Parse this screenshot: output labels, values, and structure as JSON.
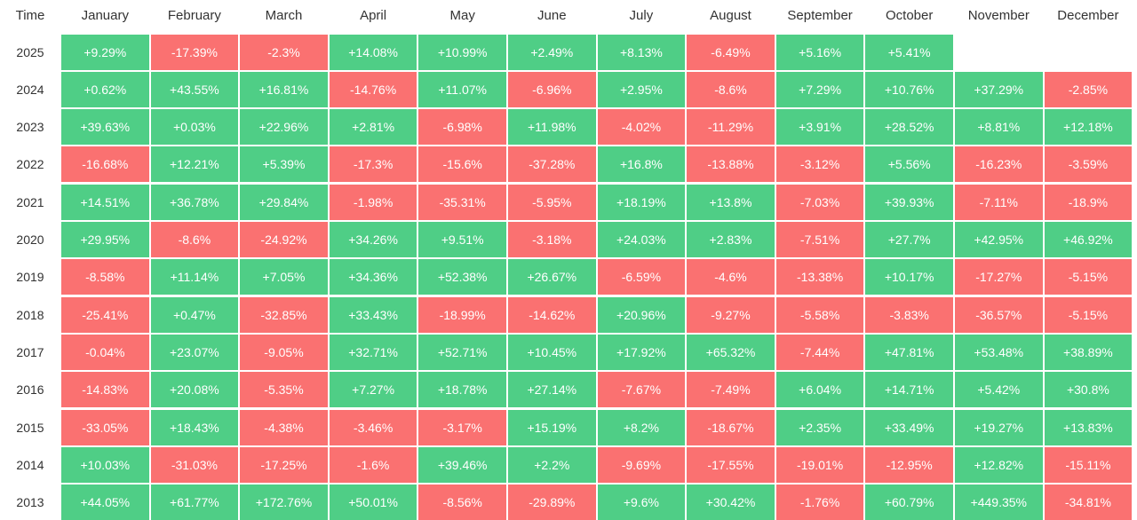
{
  "colors": {
    "positive": "#4fce86",
    "negative": "#fa7171",
    "text_on_cell": "#ffffff",
    "header_text": "#333333"
  },
  "chart_data": {
    "type": "heatmap",
    "title": "",
    "corner_label": "Time",
    "months": [
      "January",
      "February",
      "March",
      "April",
      "May",
      "June",
      "July",
      "August",
      "September",
      "October",
      "November",
      "December"
    ],
    "rows": [
      {
        "year": "2025",
        "values": [
          "+9.29%",
          "-17.39%",
          "-2.3%",
          "+14.08%",
          "+10.99%",
          "+2.49%",
          "+8.13%",
          "-6.49%",
          "+5.16%",
          "+5.41%",
          null,
          null
        ]
      },
      {
        "year": "2024",
        "values": [
          "+0.62%",
          "+43.55%",
          "+16.81%",
          "-14.76%",
          "+11.07%",
          "-6.96%",
          "+2.95%",
          "-8.6%",
          "+7.29%",
          "+10.76%",
          "+37.29%",
          "-2.85%"
        ]
      },
      {
        "year": "2023",
        "values": [
          "+39.63%",
          "+0.03%",
          "+22.96%",
          "+2.81%",
          "-6.98%",
          "+11.98%",
          "-4.02%",
          "-11.29%",
          "+3.91%",
          "+28.52%",
          "+8.81%",
          "+12.18%"
        ]
      },
      {
        "year": "2022",
        "values": [
          "-16.68%",
          "+12.21%",
          "+5.39%",
          "-17.3%",
          "-15.6%",
          "-37.28%",
          "+16.8%",
          "-13.88%",
          "-3.12%",
          "+5.56%",
          "-16.23%",
          "-3.59%"
        ]
      },
      {
        "year": "2021",
        "values": [
          "+14.51%",
          "+36.78%",
          "+29.84%",
          "-1.98%",
          "-35.31%",
          "-5.95%",
          "+18.19%",
          "+13.8%",
          "-7.03%",
          "+39.93%",
          "-7.11%",
          "-18.9%"
        ]
      },
      {
        "year": "2020",
        "values": [
          "+29.95%",
          "-8.6%",
          "-24.92%",
          "+34.26%",
          "+9.51%",
          "-3.18%",
          "+24.03%",
          "+2.83%",
          "-7.51%",
          "+27.7%",
          "+42.95%",
          "+46.92%"
        ]
      },
      {
        "year": "2019",
        "values": [
          "-8.58%",
          "+11.14%",
          "+7.05%",
          "+34.36%",
          "+52.38%",
          "+26.67%",
          "-6.59%",
          "-4.6%",
          "-13.38%",
          "+10.17%",
          "-17.27%",
          "-5.15%"
        ]
      },
      {
        "year": "2018",
        "values": [
          "-25.41%",
          "+0.47%",
          "-32.85%",
          "+33.43%",
          "-18.99%",
          "-14.62%",
          "+20.96%",
          "-9.27%",
          "-5.58%",
          "-3.83%",
          "-36.57%",
          "-5.15%"
        ]
      },
      {
        "year": "2017",
        "values": [
          "-0.04%",
          "+23.07%",
          "-9.05%",
          "+32.71%",
          "+52.71%",
          "+10.45%",
          "+17.92%",
          "+65.32%",
          "-7.44%",
          "+47.81%",
          "+53.48%",
          "+38.89%"
        ]
      },
      {
        "year": "2016",
        "values": [
          "-14.83%",
          "+20.08%",
          "-5.35%",
          "+7.27%",
          "+18.78%",
          "+27.14%",
          "-7.67%",
          "-7.49%",
          "+6.04%",
          "+14.71%",
          "+5.42%",
          "+30.8%"
        ]
      },
      {
        "year": "2015",
        "values": [
          "-33.05%",
          "+18.43%",
          "-4.38%",
          "-3.46%",
          "-3.17%",
          "+15.19%",
          "+8.2%",
          "-18.67%",
          "+2.35%",
          "+33.49%",
          "+19.27%",
          "+13.83%"
        ]
      },
      {
        "year": "2014",
        "values": [
          "+10.03%",
          "-31.03%",
          "-17.25%",
          "-1.6%",
          "+39.46%",
          "+2.2%",
          "-9.69%",
          "-17.55%",
          "-19.01%",
          "-12.95%",
          "+12.82%",
          "-15.11%"
        ]
      },
      {
        "year": "2013",
        "values": [
          "+44.05%",
          "+61.77%",
          "+172.76%",
          "+50.01%",
          "-8.56%",
          "-29.89%",
          "+9.6%",
          "+30.42%",
          "-1.76%",
          "+60.79%",
          "+449.35%",
          "-34.81%"
        ]
      }
    ]
  }
}
